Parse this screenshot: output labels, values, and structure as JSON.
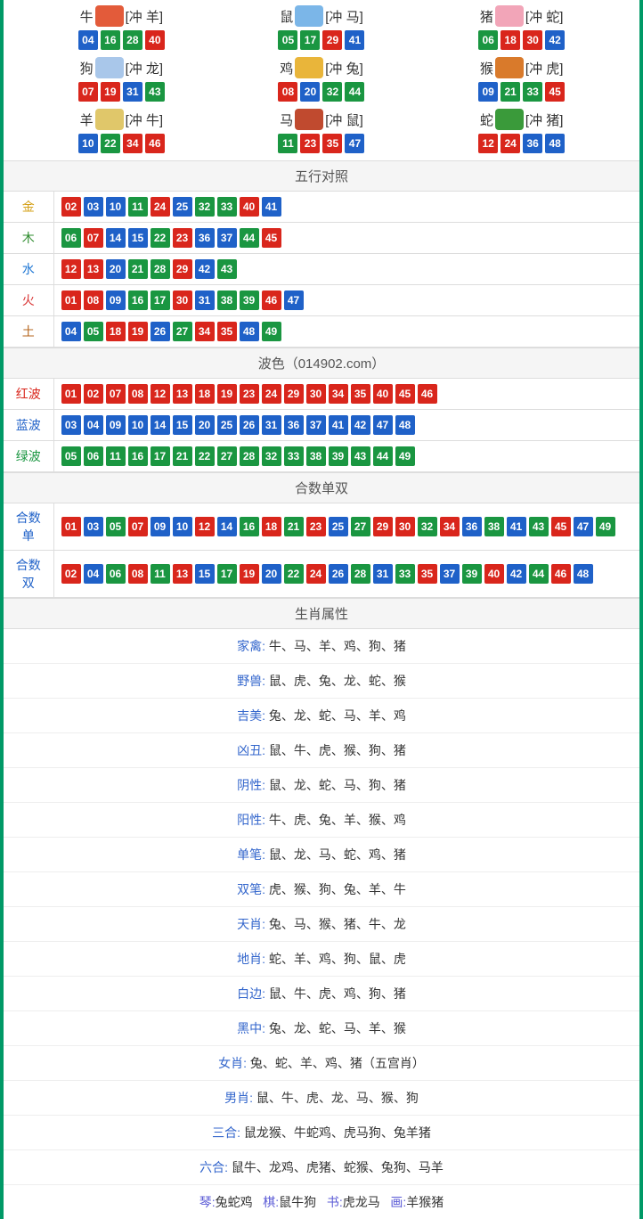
{
  "colors": {
    "red": "#d9261c",
    "blue": "#1f61c8",
    "green": "#1a9641",
    "border": "#009966"
  },
  "ball_colors": {
    "01": "red",
    "02": "red",
    "07": "red",
    "08": "red",
    "12": "red",
    "13": "red",
    "18": "red",
    "19": "red",
    "23": "red",
    "24": "red",
    "29": "red",
    "30": "red",
    "34": "red",
    "35": "red",
    "40": "red",
    "45": "red",
    "46": "red",
    "03": "blue",
    "04": "blue",
    "09": "blue",
    "10": "blue",
    "14": "blue",
    "15": "blue",
    "20": "blue",
    "25": "blue",
    "26": "blue",
    "31": "blue",
    "36": "blue",
    "37": "blue",
    "41": "blue",
    "42": "blue",
    "47": "blue",
    "48": "blue",
    "05": "green",
    "06": "green",
    "11": "green",
    "16": "green",
    "17": "green",
    "21": "green",
    "22": "green",
    "27": "green",
    "28": "green",
    "32": "green",
    "33": "green",
    "38": "green",
    "39": "green",
    "43": "green",
    "44": "green",
    "49": "green"
  },
  "zodiac": [
    {
      "name": "牛",
      "conflict": "[冲 羊]",
      "icon_color": "#e35b3a",
      "balls": [
        "04",
        "16",
        "28",
        "40"
      ]
    },
    {
      "name": "鼠",
      "conflict": "[冲 马]",
      "icon_color": "#7bb6e8",
      "balls": [
        "05",
        "17",
        "29",
        "41"
      ]
    },
    {
      "name": "猪",
      "conflict": "[冲 蛇]",
      "icon_color": "#f2a5b8",
      "balls": [
        "06",
        "18",
        "30",
        "42"
      ]
    },
    {
      "name": "狗",
      "conflict": "[冲 龙]",
      "icon_color": "#a9c7ea",
      "balls": [
        "07",
        "19",
        "31",
        "43"
      ]
    },
    {
      "name": "鸡",
      "conflict": "[冲 兔]",
      "icon_color": "#e9b53a",
      "balls": [
        "08",
        "20",
        "32",
        "44"
      ]
    },
    {
      "name": "猴",
      "conflict": "[冲 虎]",
      "icon_color": "#d97a2b",
      "balls": [
        "09",
        "21",
        "33",
        "45"
      ]
    },
    {
      "name": "羊",
      "conflict": "[冲 牛]",
      "icon_color": "#e0c76a",
      "balls": [
        "10",
        "22",
        "34",
        "46"
      ]
    },
    {
      "name": "马",
      "conflict": "[冲 鼠]",
      "icon_color": "#c04a2f",
      "balls": [
        "11",
        "23",
        "35",
        "47"
      ]
    },
    {
      "name": "蛇",
      "conflict": "[冲 猪]",
      "icon_color": "#3a9a3a",
      "balls": [
        "12",
        "24",
        "36",
        "48"
      ]
    }
  ],
  "sections": {
    "wuxing": {
      "title": "五行对照",
      "label_colors": {
        "金": "#d4a017",
        "木": "#2e8b2e",
        "水": "#1f77d4",
        "火": "#d93636",
        "土": "#b5651d"
      },
      "rows": [
        {
          "label": "金",
          "balls": [
            "02",
            "03",
            "10",
            "11",
            "24",
            "25",
            "32",
            "33",
            "40",
            "41"
          ]
        },
        {
          "label": "木",
          "balls": [
            "06",
            "07",
            "14",
            "15",
            "22",
            "23",
            "36",
            "37",
            "44",
            "45"
          ]
        },
        {
          "label": "水",
          "balls": [
            "12",
            "13",
            "20",
            "21",
            "28",
            "29",
            "42",
            "43"
          ]
        },
        {
          "label": "火",
          "balls": [
            "01",
            "08",
            "09",
            "16",
            "17",
            "30",
            "31",
            "38",
            "39",
            "46",
            "47"
          ]
        },
        {
          "label": "土",
          "balls": [
            "04",
            "05",
            "18",
            "19",
            "26",
            "27",
            "34",
            "35",
            "48",
            "49"
          ]
        }
      ]
    },
    "bose": {
      "title": "波色（014902.com）",
      "label_colors": {
        "红波": "#d9261c",
        "蓝波": "#1f61c8",
        "绿波": "#1a9641"
      },
      "rows": [
        {
          "label": "红波",
          "balls": [
            "01",
            "02",
            "07",
            "08",
            "12",
            "13",
            "18",
            "19",
            "23",
            "24",
            "29",
            "30",
            "34",
            "35",
            "40",
            "45",
            "46"
          ]
        },
        {
          "label": "蓝波",
          "balls": [
            "03",
            "04",
            "09",
            "10",
            "14",
            "15",
            "20",
            "25",
            "26",
            "31",
            "36",
            "37",
            "41",
            "42",
            "47",
            "48"
          ]
        },
        {
          "label": "绿波",
          "balls": [
            "05",
            "06",
            "11",
            "16",
            "17",
            "21",
            "22",
            "27",
            "28",
            "32",
            "33",
            "38",
            "39",
            "43",
            "44",
            "49"
          ]
        }
      ]
    },
    "heshu": {
      "title": "合数单双",
      "label_colors": {
        "合数单": "#1f61c8",
        "合数双": "#1f61c8"
      },
      "rows": [
        {
          "label": "合数单",
          "balls": [
            "01",
            "03",
            "05",
            "07",
            "09",
            "10",
            "12",
            "14",
            "16",
            "18",
            "21",
            "23",
            "25",
            "27",
            "29",
            "30",
            "32",
            "34",
            "36",
            "38",
            "41",
            "43",
            "45",
            "47",
            "49"
          ]
        },
        {
          "label": "合数双",
          "balls": [
            "02",
            "04",
            "06",
            "08",
            "11",
            "13",
            "15",
            "17",
            "19",
            "20",
            "22",
            "24",
            "26",
            "28",
            "31",
            "33",
            "35",
            "37",
            "39",
            "40",
            "42",
            "44",
            "46",
            "48"
          ]
        }
      ]
    },
    "attrs": {
      "title": "生肖属性",
      "rows": [
        {
          "label": "家禽: ",
          "value": "牛、马、羊、鸡、狗、猪"
        },
        {
          "label": "野兽: ",
          "value": "鼠、虎、兔、龙、蛇、猴"
        },
        {
          "label": "吉美: ",
          "value": "兔、龙、蛇、马、羊、鸡"
        },
        {
          "label": "凶丑: ",
          "value": "鼠、牛、虎、猴、狗、猪"
        },
        {
          "label": "阴性: ",
          "value": "鼠、龙、蛇、马、狗、猪"
        },
        {
          "label": "阳性: ",
          "value": "牛、虎、兔、羊、猴、鸡"
        },
        {
          "label": "单笔: ",
          "value": "鼠、龙、马、蛇、鸡、猪"
        },
        {
          "label": "双笔: ",
          "value": "虎、猴、狗、兔、羊、牛"
        },
        {
          "label": "天肖: ",
          "value": "兔、马、猴、猪、牛、龙"
        },
        {
          "label": "地肖: ",
          "value": "蛇、羊、鸡、狗、鼠、虎"
        },
        {
          "label": "白边: ",
          "value": "鼠、牛、虎、鸡、狗、猪"
        },
        {
          "label": "黑中: ",
          "value": "兔、龙、蛇、马、羊、猴"
        },
        {
          "label": "女肖: ",
          "value": "兔、蛇、羊、鸡、猪（五宫肖）"
        },
        {
          "label": "男肖: ",
          "value": "鼠、牛、虎、龙、马、猴、狗"
        },
        {
          "label": "三合: ",
          "value": "鼠龙猴、牛蛇鸡、虎马狗、兔羊猪"
        },
        {
          "label": "六合: ",
          "value": "鼠牛、龙鸡、虎猪、蛇猴、兔狗、马羊"
        }
      ],
      "bottom": [
        {
          "label": "琴:",
          "value": "兔蛇鸡"
        },
        {
          "label": "棋:",
          "value": "鼠牛狗"
        },
        {
          "label": "书:",
          "value": "虎龙马"
        },
        {
          "label": "画:",
          "value": "羊猴猪"
        }
      ]
    }
  }
}
